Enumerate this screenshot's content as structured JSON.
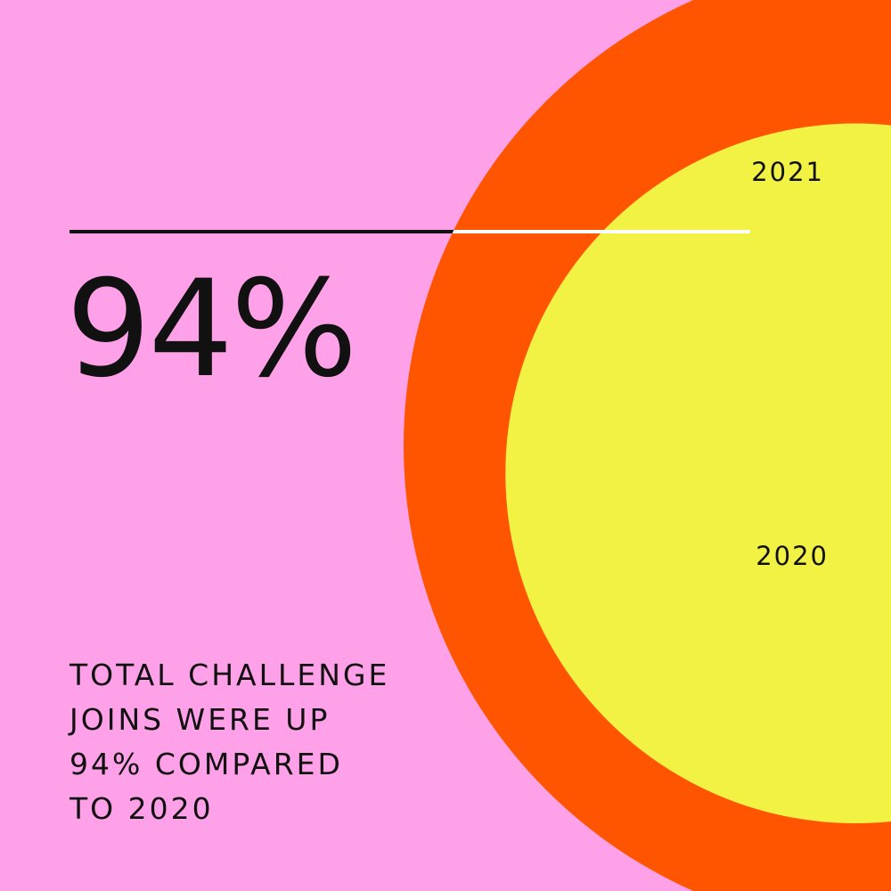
{
  "headline": {
    "value": "94%"
  },
  "caption": {
    "lines": [
      "TOTAL CHALLENGE",
      "JOINS WERE UP",
      "94% COMPARED",
      "TO 2020"
    ]
  },
  "chart_data": {
    "type": "bubble",
    "title": "",
    "series": [
      {
        "name": "2021",
        "value": 194,
        "color": "#ff5500"
      },
      {
        "name": "2020",
        "value": 100,
        "color": "#f2f244"
      }
    ],
    "change_percent": 94
  },
  "colors": {
    "background": "#ffa1e8",
    "text": "#111111",
    "divider_dark": "#111111",
    "divider_light": "#ffffff"
  }
}
